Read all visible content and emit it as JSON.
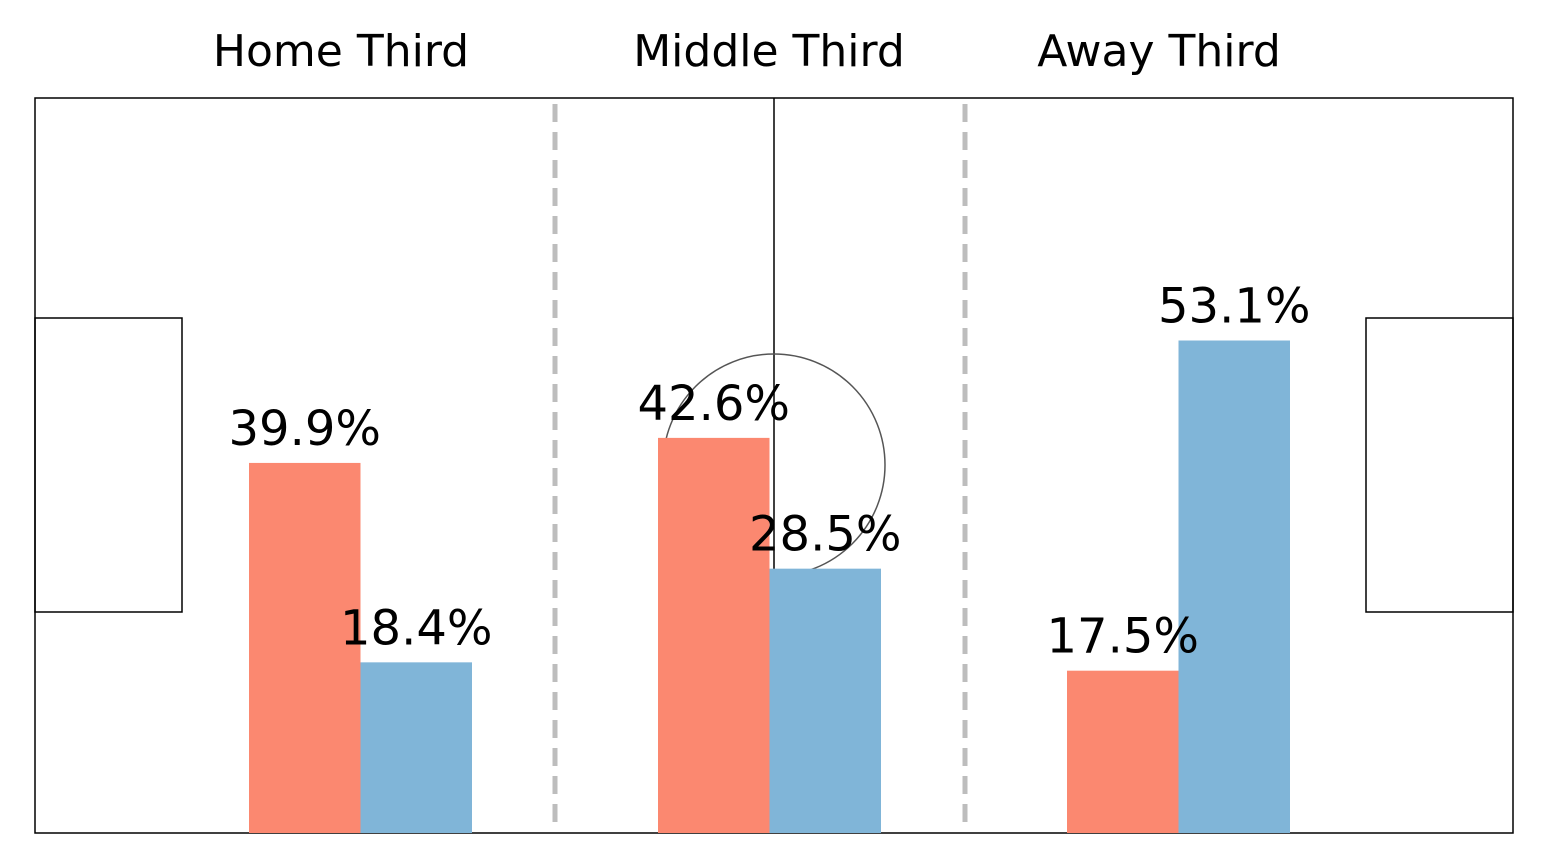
{
  "chart_data": {
    "type": "bar",
    "title": "",
    "xlabel": "",
    "ylabel": "",
    "ylim": [
      0,
      100
    ],
    "grid": false,
    "legend": "none",
    "categories": [
      "Home Third",
      "Middle Third",
      "Away Third"
    ],
    "series": [
      {
        "color": "#fb8870",
        "values": [
          39.9,
          42.6,
          17.5
        ],
        "labels": [
          "39.9%",
          "42.6%",
          "17.5%"
        ]
      },
      {
        "color": "#80b5d8",
        "values": [
          18.4,
          28.5,
          53.1
        ],
        "labels": [
          "18.4%",
          "28.5%",
          "53.1%"
        ]
      }
    ]
  }
}
